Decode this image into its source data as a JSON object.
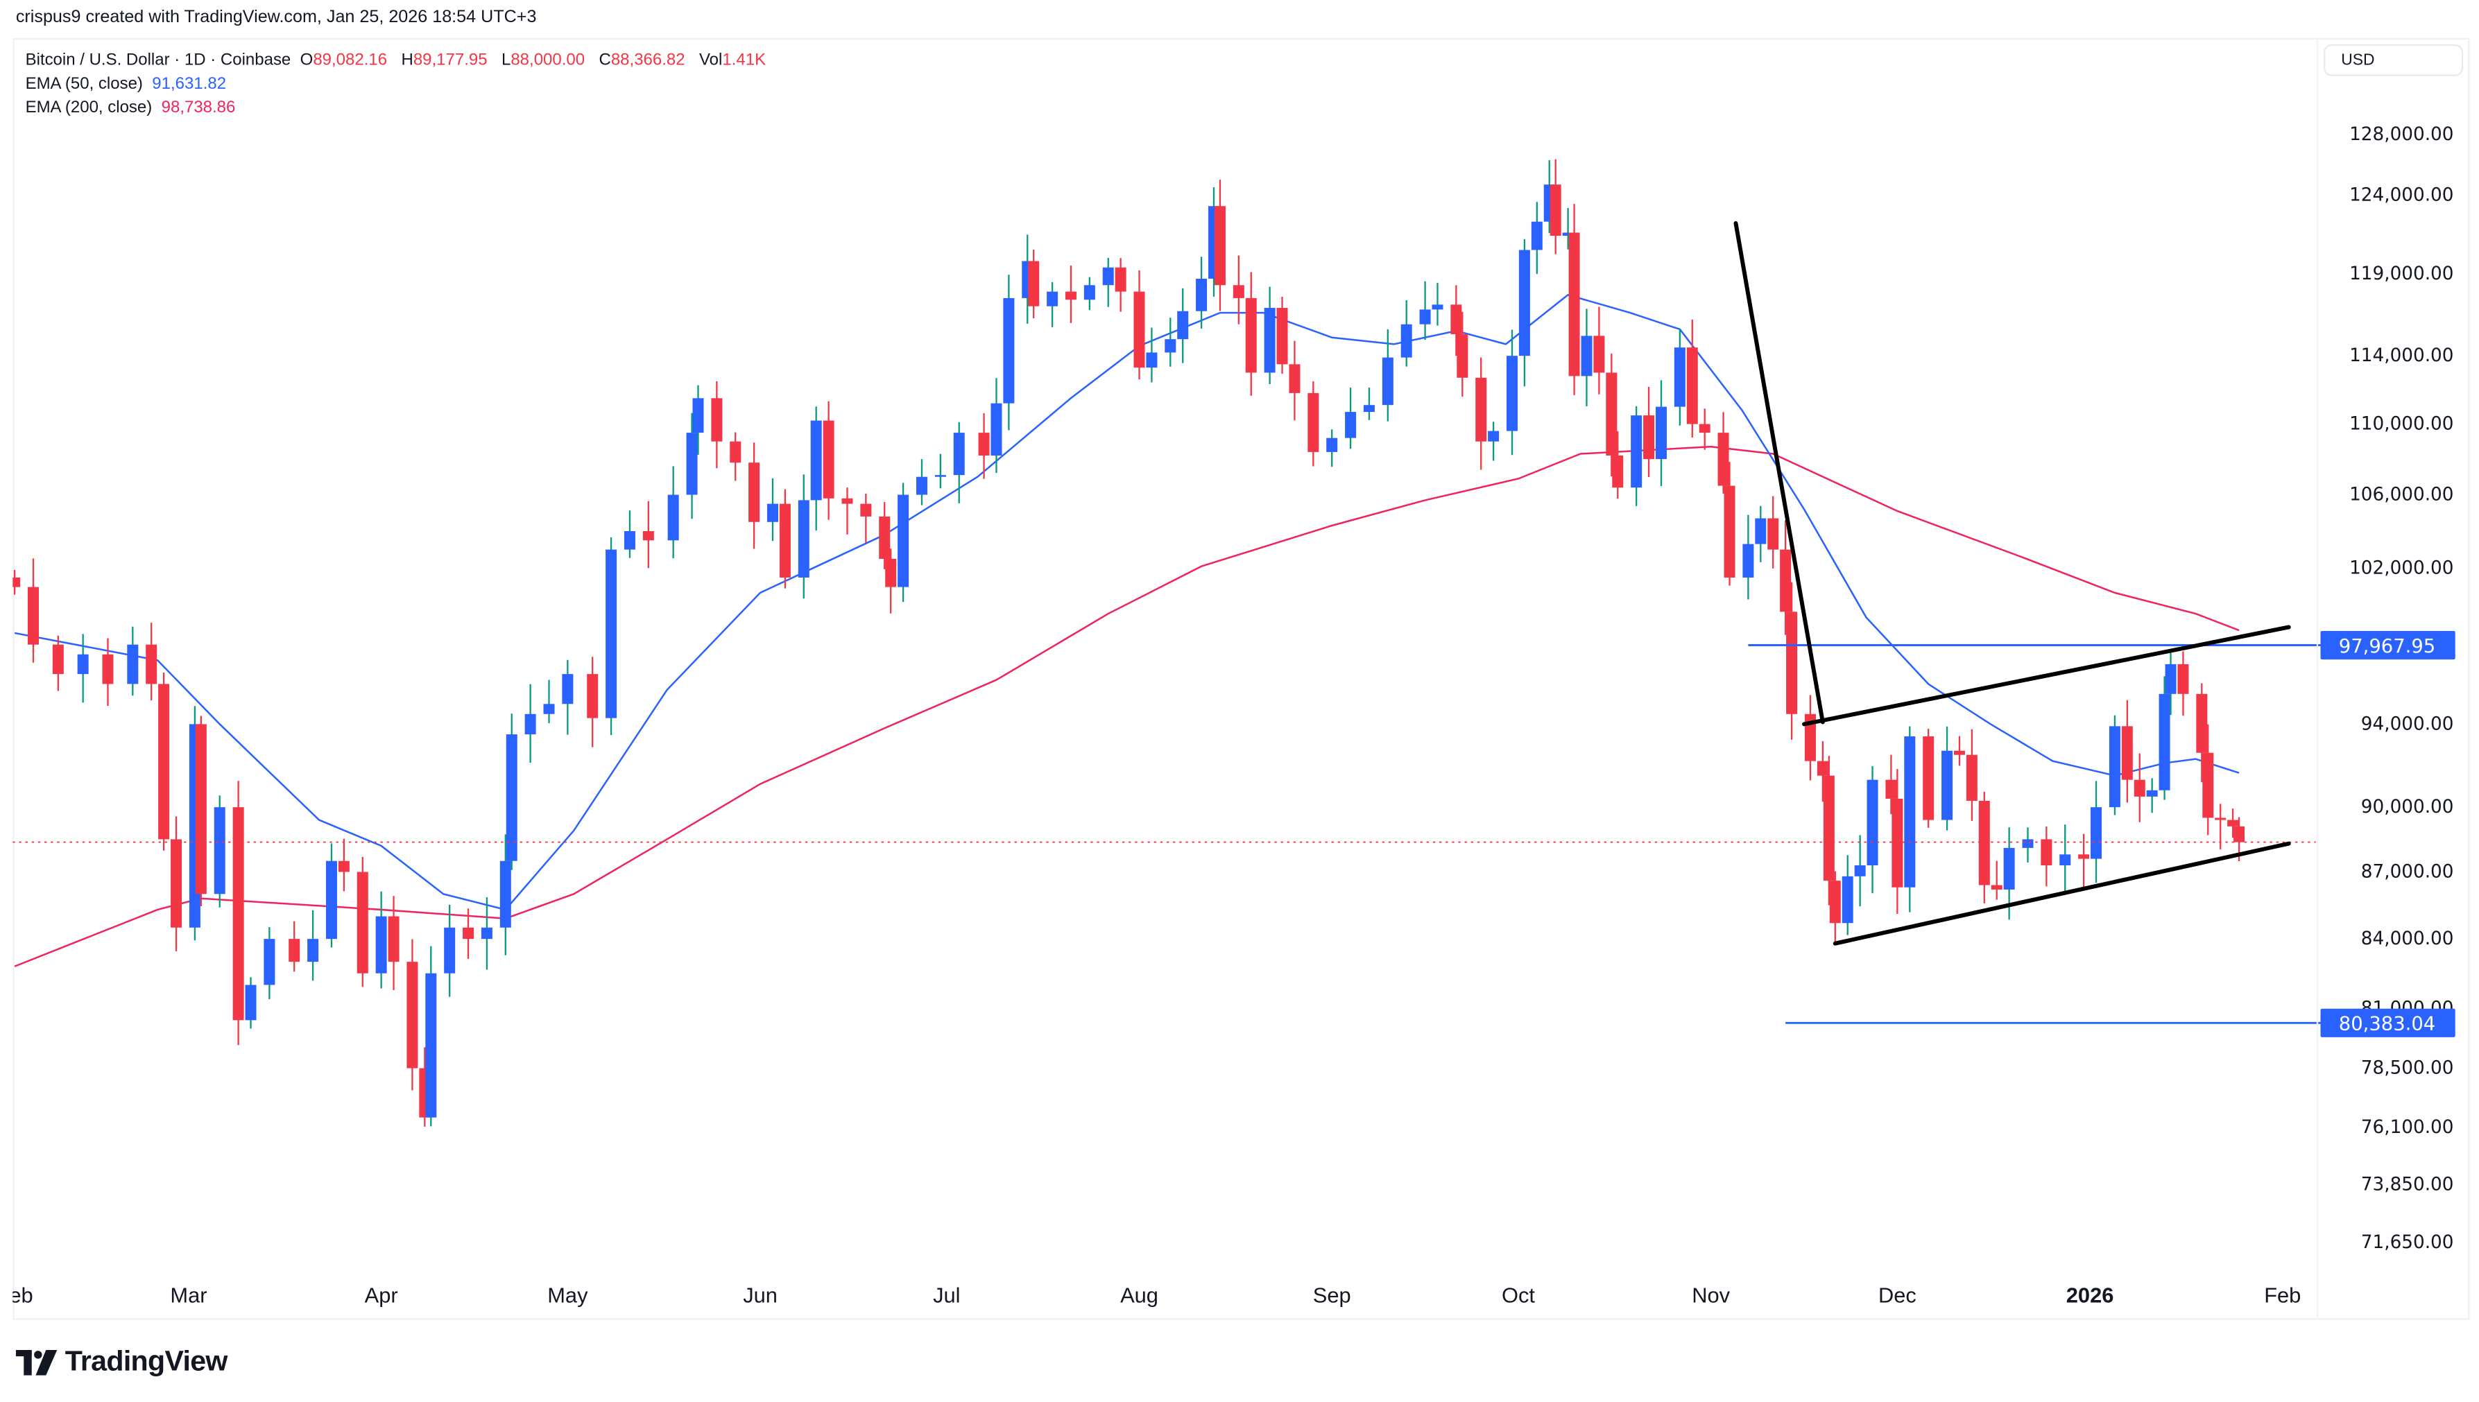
{
  "credit": "crispus9 created with TradingView.com, Jan 25, 2026 18:54 UTC+3",
  "legend": {
    "symbol": "Bitcoin / U.S. Dollar · 1D · Coinbase",
    "o_label": "O",
    "o": "89,082.16",
    "h_label": "H",
    "h": "89,177.95",
    "l_label": "L",
    "l": "88,000.00",
    "c_label": "C",
    "c": "88,366.82",
    "vol_label": "Vol",
    "vol": "1.41K",
    "ema50_label": "EMA (50, close)",
    "ema50": "91,631.82",
    "ema200_label": "EMA (200, close)",
    "ema200": "98,738.86"
  },
  "currency": "USD",
  "brand": "TradingView",
  "colors": {
    "up_body": "#2962ff",
    "up_wick": "#089981",
    "down": "#f23645",
    "ema50": "#2962ff",
    "ema200": "#f0245c",
    "level": "#2962ff",
    "trendline": "#000000"
  },
  "chart_data": {
    "type": "candlestick",
    "yscale": "log",
    "ylim": [
      70500,
      131000
    ],
    "grid": false,
    "y_ticks": [
      {
        "value": 128000,
        "label": "128,000.00"
      },
      {
        "value": 124000,
        "label": "124,000.00"
      },
      {
        "value": 119000,
        "label": "119,000.00"
      },
      {
        "value": 114000,
        "label": "114,000.00"
      },
      {
        "value": 110000,
        "label": "110,000.00"
      },
      {
        "value": 106000,
        "label": "106,000.00"
      },
      {
        "value": 102000,
        "label": "102,000.00"
      },
      {
        "value": 94000,
        "label": "94,000.00"
      },
      {
        "value": 90000,
        "label": "90,000.00"
      },
      {
        "value": 87000,
        "label": "87,000.00"
      },
      {
        "value": 84000,
        "label": "84,000.00"
      },
      {
        "value": 81000,
        "label": "81,000.00"
      },
      {
        "value": 78500,
        "label": "78,500.00"
      },
      {
        "value": 76100,
        "label": "76,100.00"
      },
      {
        "value": 73850,
        "label": "73,850.00"
      },
      {
        "value": 71650,
        "label": "71,650.00"
      }
    ],
    "x_ticks": [
      {
        "date": "2025-02-01",
        "label": "Feb"
      },
      {
        "date": "2025-03-01",
        "label": "Mar"
      },
      {
        "date": "2025-04-01",
        "label": "Apr"
      },
      {
        "date": "2025-05-01",
        "label": "May"
      },
      {
        "date": "2025-06-01",
        "label": "Jun"
      },
      {
        "date": "2025-07-01",
        "label": "Jul"
      },
      {
        "date": "2025-08-01",
        "label": "Aug"
      },
      {
        "date": "2025-09-01",
        "label": "Sep"
      },
      {
        "date": "2025-10-01",
        "label": "Oct"
      },
      {
        "date": "2025-11-01",
        "label": "Nov"
      },
      {
        "date": "2025-12-01",
        "label": "Dec"
      },
      {
        "date": "2026-01-01",
        "label": "2026",
        "bold": true
      },
      {
        "date": "2026-02-01",
        "label": "Feb"
      }
    ],
    "closes": [
      [
        "2025-02-01",
        101000
      ],
      [
        "2025-02-04",
        98000
      ],
      [
        "2025-02-08",
        96500
      ],
      [
        "2025-02-12",
        97500
      ],
      [
        "2025-02-16",
        96000
      ],
      [
        "2025-02-20",
        98000
      ],
      [
        "2025-02-23",
        96000
      ],
      [
        "2025-02-25",
        88500
      ],
      [
        "2025-02-27",
        84500
      ],
      [
        "2025-03-02",
        94000
      ],
      [
        "2025-03-03",
        86000
      ],
      [
        "2025-03-06",
        90000
      ],
      [
        "2025-03-09",
        80500
      ],
      [
        "2025-03-11",
        82000
      ],
      [
        "2025-03-14",
        84000
      ],
      [
        "2025-03-18",
        83000
      ],
      [
        "2025-03-21",
        84000
      ],
      [
        "2025-03-24",
        87500
      ],
      [
        "2025-03-26",
        87000
      ],
      [
        "2025-03-29",
        82500
      ],
      [
        "2025-04-01",
        85000
      ],
      [
        "2025-04-03",
        83000
      ],
      [
        "2025-04-06",
        78500
      ],
      [
        "2025-04-08",
        76500
      ],
      [
        "2025-04-09",
        82500
      ],
      [
        "2025-04-12",
        84500
      ],
      [
        "2025-04-15",
        84000
      ],
      [
        "2025-04-18",
        84500
      ],
      [
        "2025-04-21",
        87500
      ],
      [
        "2025-04-22",
        93500
      ],
      [
        "2025-04-25",
        94500
      ],
      [
        "2025-04-28",
        95000
      ],
      [
        "2025-05-01",
        96500
      ],
      [
        "2025-05-05",
        94300
      ],
      [
        "2025-05-08",
        103000
      ],
      [
        "2025-05-11",
        104000
      ],
      [
        "2025-05-14",
        103500
      ],
      [
        "2025-05-18",
        106000
      ],
      [
        "2025-05-21",
        109500
      ],
      [
        "2025-05-22",
        111500
      ],
      [
        "2025-05-25",
        109000
      ],
      [
        "2025-05-28",
        107800
      ],
      [
        "2025-05-31",
        104500
      ],
      [
        "2025-06-03",
        105500
      ],
      [
        "2025-06-05",
        101500
      ],
      [
        "2025-06-08",
        105700
      ],
      [
        "2025-06-10",
        110200
      ],
      [
        "2025-06-12",
        105800
      ],
      [
        "2025-06-15",
        105500
      ],
      [
        "2025-06-18",
        104800
      ],
      [
        "2025-06-21",
        102500
      ],
      [
        "2025-06-22",
        101000
      ],
      [
        "2025-06-24",
        106000
      ],
      [
        "2025-06-27",
        107000
      ],
      [
        "2025-06-30",
        107100
      ],
      [
        "2025-07-03",
        109500
      ],
      [
        "2025-07-07",
        108200
      ],
      [
        "2025-07-09",
        111200
      ],
      [
        "2025-07-11",
        117500
      ],
      [
        "2025-07-14",
        119800
      ],
      [
        "2025-07-15",
        117000
      ],
      [
        "2025-07-18",
        117900
      ],
      [
        "2025-07-21",
        117400
      ],
      [
        "2025-07-24",
        118300
      ],
      [
        "2025-07-27",
        119400
      ],
      [
        "2025-07-29",
        117900
      ],
      [
        "2025-08-01",
        113300
      ],
      [
        "2025-08-03",
        114200
      ],
      [
        "2025-08-06",
        115000
      ],
      [
        "2025-08-08",
        116700
      ],
      [
        "2025-08-11",
        118700
      ],
      [
        "2025-08-13",
        123300
      ],
      [
        "2025-08-14",
        118300
      ],
      [
        "2025-08-17",
        117500
      ],
      [
        "2025-08-19",
        113000
      ],
      [
        "2025-08-22",
        116900
      ],
      [
        "2025-08-24",
        113500
      ],
      [
        "2025-08-26",
        111800
      ],
      [
        "2025-08-29",
        108400
      ],
      [
        "2025-09-01",
        109200
      ],
      [
        "2025-09-04",
        110700
      ],
      [
        "2025-09-07",
        111100
      ],
      [
        "2025-09-10",
        113900
      ],
      [
        "2025-09-13",
        115900
      ],
      [
        "2025-09-16",
        116800
      ],
      [
        "2025-09-18",
        117100
      ],
      [
        "2025-09-21",
        115300
      ],
      [
        "2025-09-22",
        112700
      ],
      [
        "2025-09-25",
        109000
      ],
      [
        "2025-09-27",
        109600
      ],
      [
        "2025-09-30",
        114000
      ],
      [
        "2025-10-02",
        120500
      ],
      [
        "2025-10-04",
        122300
      ],
      [
        "2025-10-06",
        124700
      ],
      [
        "2025-10-07",
        121400
      ],
      [
        "2025-10-09",
        121600
      ],
      [
        "2025-10-10",
        112800
      ],
      [
        "2025-10-12",
        115200
      ],
      [
        "2025-10-14",
        113000
      ],
      [
        "2025-10-16",
        108200
      ],
      [
        "2025-10-17",
        106400
      ],
      [
        "2025-10-20",
        110500
      ],
      [
        "2025-10-22",
        108000
      ],
      [
        "2025-10-24",
        111000
      ],
      [
        "2025-10-27",
        114500
      ],
      [
        "2025-10-29",
        110000
      ],
      [
        "2025-10-31",
        109500
      ],
      [
        "2025-11-03",
        106500
      ],
      [
        "2025-11-04",
        101500
      ],
      [
        "2025-11-07",
        103300
      ],
      [
        "2025-11-09",
        104700
      ],
      [
        "2025-11-11",
        103000
      ],
      [
        "2025-11-13",
        99700
      ],
      [
        "2025-11-14",
        94500
      ],
      [
        "2025-11-17",
        92200
      ],
      [
        "2025-11-19",
        91500
      ],
      [
        "2025-11-20",
        86600
      ],
      [
        "2025-11-21",
        84700
      ],
      [
        "2025-11-23",
        86800
      ],
      [
        "2025-11-25",
        87300
      ],
      [
        "2025-11-27",
        91300
      ],
      [
        "2025-11-30",
        90400
      ],
      [
        "2025-12-01",
        86300
      ],
      [
        "2025-12-03",
        93400
      ],
      [
        "2025-12-06",
        89400
      ],
      [
        "2025-12-09",
        92700
      ],
      [
        "2025-12-11",
        92500
      ],
      [
        "2025-12-13",
        90300
      ],
      [
        "2025-12-15",
        86400
      ],
      [
        "2025-12-17",
        86200
      ],
      [
        "2025-12-19",
        88100
      ],
      [
        "2025-12-22",
        88500
      ],
      [
        "2025-12-25",
        87300
      ],
      [
        "2025-12-28",
        87800
      ],
      [
        "2025-12-31",
        87600
      ],
      [
        "2026-01-02",
        90000
      ],
      [
        "2026-01-05",
        93900
      ],
      [
        "2026-01-07",
        91300
      ],
      [
        "2026-01-09",
        90500
      ],
      [
        "2026-01-11",
        90800
      ],
      [
        "2026-01-13",
        95500
      ],
      [
        "2026-01-14",
        97000
      ],
      [
        "2026-01-16",
        95500
      ],
      [
        "2026-01-19",
        92600
      ],
      [
        "2026-01-20",
        89500
      ],
      [
        "2026-01-22",
        89400
      ],
      [
        "2026-01-24",
        89100
      ],
      [
        "2026-01-25",
        88366.82
      ]
    ],
    "ema50": [
      [
        "2025-02-01",
        98600
      ],
      [
        "2025-02-24",
        97200
      ],
      [
        "2025-03-06",
        94000
      ],
      [
        "2025-03-22",
        89400
      ],
      [
        "2025-04-01",
        88200
      ],
      [
        "2025-04-11",
        86000
      ],
      [
        "2025-04-21",
        85300
      ],
      [
        "2025-05-02",
        88900
      ],
      [
        "2025-05-17",
        95700
      ],
      [
        "2025-06-01",
        100700
      ],
      [
        "2025-06-21",
        103800
      ],
      [
        "2025-07-06",
        107000
      ],
      [
        "2025-07-21",
        111500
      ],
      [
        "2025-08-01",
        114600
      ],
      [
        "2025-08-14",
        116600
      ],
      [
        "2025-08-21",
        116600
      ],
      [
        "2025-09-01",
        115100
      ],
      [
        "2025-09-11",
        114700
      ],
      [
        "2025-09-21",
        115500
      ],
      [
        "2025-09-29",
        114700
      ],
      [
        "2025-10-09",
        117700
      ],
      [
        "2025-10-19",
        116600
      ],
      [
        "2025-10-27",
        115600
      ],
      [
        "2025-11-06",
        110800
      ],
      [
        "2025-11-16",
        105200
      ],
      [
        "2025-11-26",
        99400
      ],
      [
        "2025-12-06",
        96000
      ],
      [
        "2025-12-16",
        94000
      ],
      [
        "2025-12-26",
        92200
      ],
      [
        "2026-01-05",
        91500
      ],
      [
        "2026-01-13",
        92100
      ],
      [
        "2026-01-18",
        92300
      ],
      [
        "2026-01-25",
        91631.82
      ]
    ],
    "ema200": [
      [
        "2025-02-01",
        82800
      ],
      [
        "2025-02-24",
        85300
      ],
      [
        "2025-03-03",
        85800
      ],
      [
        "2025-04-01",
        85300
      ],
      [
        "2025-04-21",
        84900
      ],
      [
        "2025-05-02",
        86000
      ],
      [
        "2025-05-17",
        88500
      ],
      [
        "2025-06-01",
        91100
      ],
      [
        "2025-06-21",
        93800
      ],
      [
        "2025-07-09",
        96200
      ],
      [
        "2025-07-27",
        99600
      ],
      [
        "2025-08-11",
        102100
      ],
      [
        "2025-09-01",
        104300
      ],
      [
        "2025-09-16",
        105700
      ],
      [
        "2025-10-01",
        106900
      ],
      [
        "2025-10-11",
        108300
      ],
      [
        "2025-11-01",
        108700
      ],
      [
        "2025-11-11",
        108300
      ],
      [
        "2025-12-01",
        105100
      ],
      [
        "2025-12-21",
        102600
      ],
      [
        "2026-01-05",
        100700
      ],
      [
        "2026-01-18",
        99600
      ],
      [
        "2026-01-25",
        98738.86
      ]
    ],
    "horizontal_levels": [
      {
        "value": 97967.95,
        "label": "97,967.95",
        "from": "2025-11-07"
      },
      {
        "value": 80383.04,
        "label": "80,383.04",
        "from": "2025-11-13"
      }
    ],
    "last_price": 88366.82,
    "trendlines": [
      {
        "from": [
          "2025-11-05",
          122200
        ],
        "to": [
          "2025-11-19",
          94100
        ]
      },
      {
        "from": [
          "2025-11-16",
          94000
        ],
        "to": [
          "2026-02-02",
          98900
        ]
      },
      {
        "from": [
          "2025-11-21",
          83800
        ],
        "to": [
          "2026-02-02",
          88300
        ]
      }
    ]
  }
}
